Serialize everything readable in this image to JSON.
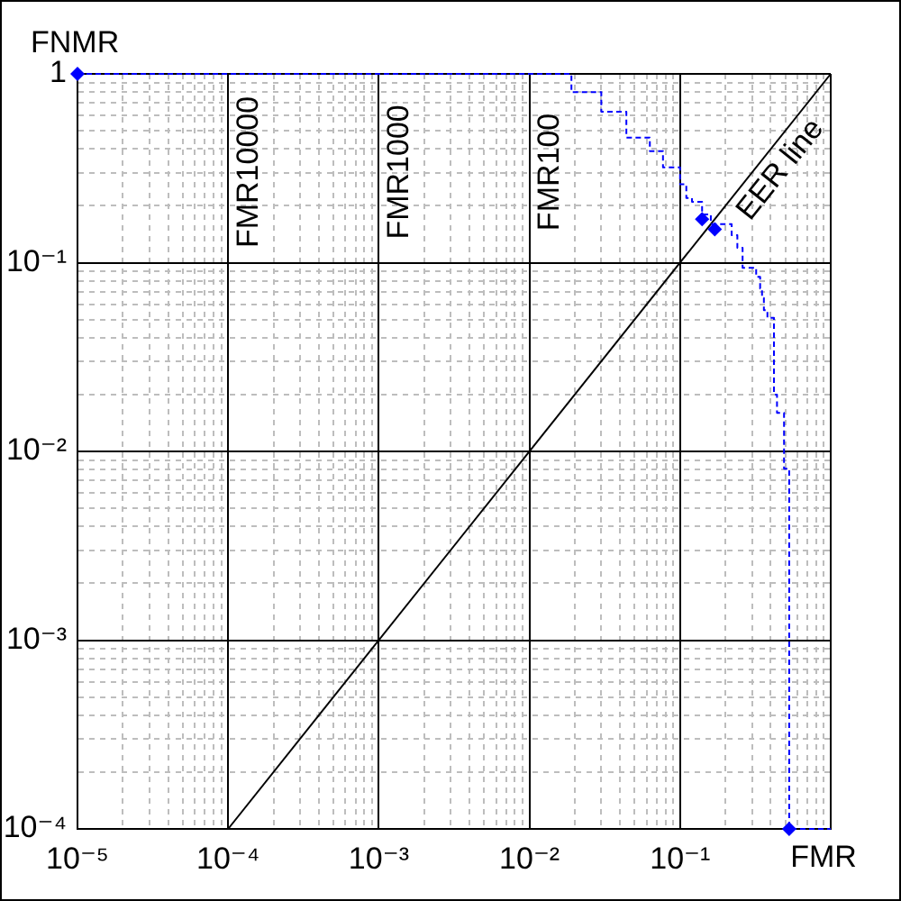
{
  "chart_data": {
    "type": "line",
    "xlabel": "FMR",
    "ylabel": "FNMR",
    "log": "xy",
    "grid": true,
    "xlim": [
      1e-05,
      1
    ],
    "ylim": [
      0.0001,
      1
    ],
    "xticks": [
      {
        "value": 1e-05,
        "label": "10⁻⁵"
      },
      {
        "value": 2e-05,
        "label": null
      },
      {
        "value": 3e-05,
        "label": null
      },
      {
        "value": 4e-05,
        "label": null
      },
      {
        "value": 5e-05,
        "label": null
      },
      {
        "value": 6e-05,
        "label": null
      },
      {
        "value": 7e-05,
        "label": null
      },
      {
        "value": 8e-05,
        "label": null
      },
      {
        "value": 9e-05,
        "label": null
      },
      {
        "value": 0.0001,
        "label": "10⁻⁴"
      },
      {
        "value": 0.0002,
        "label": null
      },
      {
        "value": 0.0003,
        "label": null
      },
      {
        "value": 0.0004,
        "label": null
      },
      {
        "value": 0.0005,
        "label": null
      },
      {
        "value": 0.0006,
        "label": null
      },
      {
        "value": 0.0007,
        "label": null
      },
      {
        "value": 0.0008,
        "label": null
      },
      {
        "value": 0.0009,
        "label": null
      },
      {
        "value": 0.001,
        "label": "10⁻³"
      },
      {
        "value": 0.002,
        "label": null
      },
      {
        "value": 0.003,
        "label": null
      },
      {
        "value": 0.004,
        "label": null
      },
      {
        "value": 0.005,
        "label": null
      },
      {
        "value": 0.006,
        "label": null
      },
      {
        "value": 0.007,
        "label": null
      },
      {
        "value": 0.008,
        "label": null
      },
      {
        "value": 0.009,
        "label": null
      },
      {
        "value": 0.01,
        "label": "10⁻²"
      },
      {
        "value": 0.02,
        "label": null
      },
      {
        "value": 0.03,
        "label": null
      },
      {
        "value": 0.04,
        "label": null
      },
      {
        "value": 0.05,
        "label": null
      },
      {
        "value": 0.06,
        "label": null
      },
      {
        "value": 0.07,
        "label": null
      },
      {
        "value": 0.08,
        "label": null
      },
      {
        "value": 0.09,
        "label": null
      },
      {
        "value": 0.1,
        "label": "10⁻¹"
      },
      {
        "value": 0.2,
        "label": null
      },
      {
        "value": 0.3,
        "label": null
      },
      {
        "value": 0.4,
        "label": null
      },
      {
        "value": 0.5,
        "label": null
      },
      {
        "value": 0.6,
        "label": null
      },
      {
        "value": 0.7,
        "label": null
      },
      {
        "value": 0.8,
        "label": null
      },
      {
        "value": 0.9,
        "label": null
      },
      {
        "value": 1,
        "label": null
      }
    ],
    "yticks": [
      {
        "value": 0.0001,
        "label": "10⁻⁴"
      },
      {
        "value": 0.0002,
        "label": null
      },
      {
        "value": 0.0003,
        "label": null
      },
      {
        "value": 0.0004,
        "label": null
      },
      {
        "value": 0.0005,
        "label": null
      },
      {
        "value": 0.0006,
        "label": null
      },
      {
        "value": 0.0007,
        "label": null
      },
      {
        "value": 0.0008,
        "label": null
      },
      {
        "value": 0.0009,
        "label": null
      },
      {
        "value": 0.001,
        "label": "10⁻³"
      },
      {
        "value": 0.002,
        "label": null
      },
      {
        "value": 0.003,
        "label": null
      },
      {
        "value": 0.004,
        "label": null
      },
      {
        "value": 0.005,
        "label": null
      },
      {
        "value": 0.006,
        "label": null
      },
      {
        "value": 0.007,
        "label": null
      },
      {
        "value": 0.008,
        "label": null
      },
      {
        "value": 0.009,
        "label": null
      },
      {
        "value": 0.01,
        "label": "10⁻²"
      },
      {
        "value": 0.02,
        "label": null
      },
      {
        "value": 0.03,
        "label": null
      },
      {
        "value": 0.04,
        "label": null
      },
      {
        "value": 0.05,
        "label": null
      },
      {
        "value": 0.06,
        "label": null
      },
      {
        "value": 0.07,
        "label": null
      },
      {
        "value": 0.08,
        "label": null
      },
      {
        "value": 0.09,
        "label": null
      },
      {
        "value": 0.1,
        "label": "10⁻¹"
      },
      {
        "value": 0.2,
        "label": null
      },
      {
        "value": 0.3,
        "label": null
      },
      {
        "value": 0.4,
        "label": null
      },
      {
        "value": 0.5,
        "label": null
      },
      {
        "value": 0.6,
        "label": null
      },
      {
        "value": 0.7,
        "label": null
      },
      {
        "value": 0.8,
        "label": null
      },
      {
        "value": 0.9,
        "label": null
      },
      1
    ],
    "annotations": [
      "FMR10000",
      "FMR1000",
      "FMR100"
    ],
    "series": [
      {
        "name": "EER line",
        "type": "line",
        "color": "#000000",
        "line_style": "solid",
        "marker": "none",
        "x": [
          0.0001,
          1
        ],
        "values": [
          0.0001,
          1
        ]
      },
      {
        "type": "step",
        "color": "#0000ff",
        "line_style": "dashed",
        "marker": "none",
        "x": [
          1e-05,
          0.019,
          0.03,
          0.044,
          0.063,
          0.077,
          0.1,
          0.11,
          0.12,
          0.14,
          0.16,
          0.22,
          0.24,
          0.26,
          0.32,
          0.34,
          0.35,
          0.36,
          0.38,
          0.42,
          0.44,
          0.49,
          0.53,
          1
        ],
        "values": [
          1,
          0.8,
          0.63,
          0.46,
          0.39,
          0.32,
          0.26,
          0.22,
          0.21,
          0.18,
          0.16,
          0.14,
          0.12,
          0.094,
          0.084,
          0.073,
          0.065,
          0.056,
          0.051,
          0.02,
          0.016,
          0.0081,
          0.0001,
          0.0001
        ]
      },
      {
        "type": "scatter",
        "color": "#0000ff",
        "marker": "diamond",
        "x": [
          1e-05,
          0.14,
          0.17,
          0.53
        ],
        "values": [
          1,
          0.17,
          0.15,
          0.0001
        ]
      }
    ]
  }
}
